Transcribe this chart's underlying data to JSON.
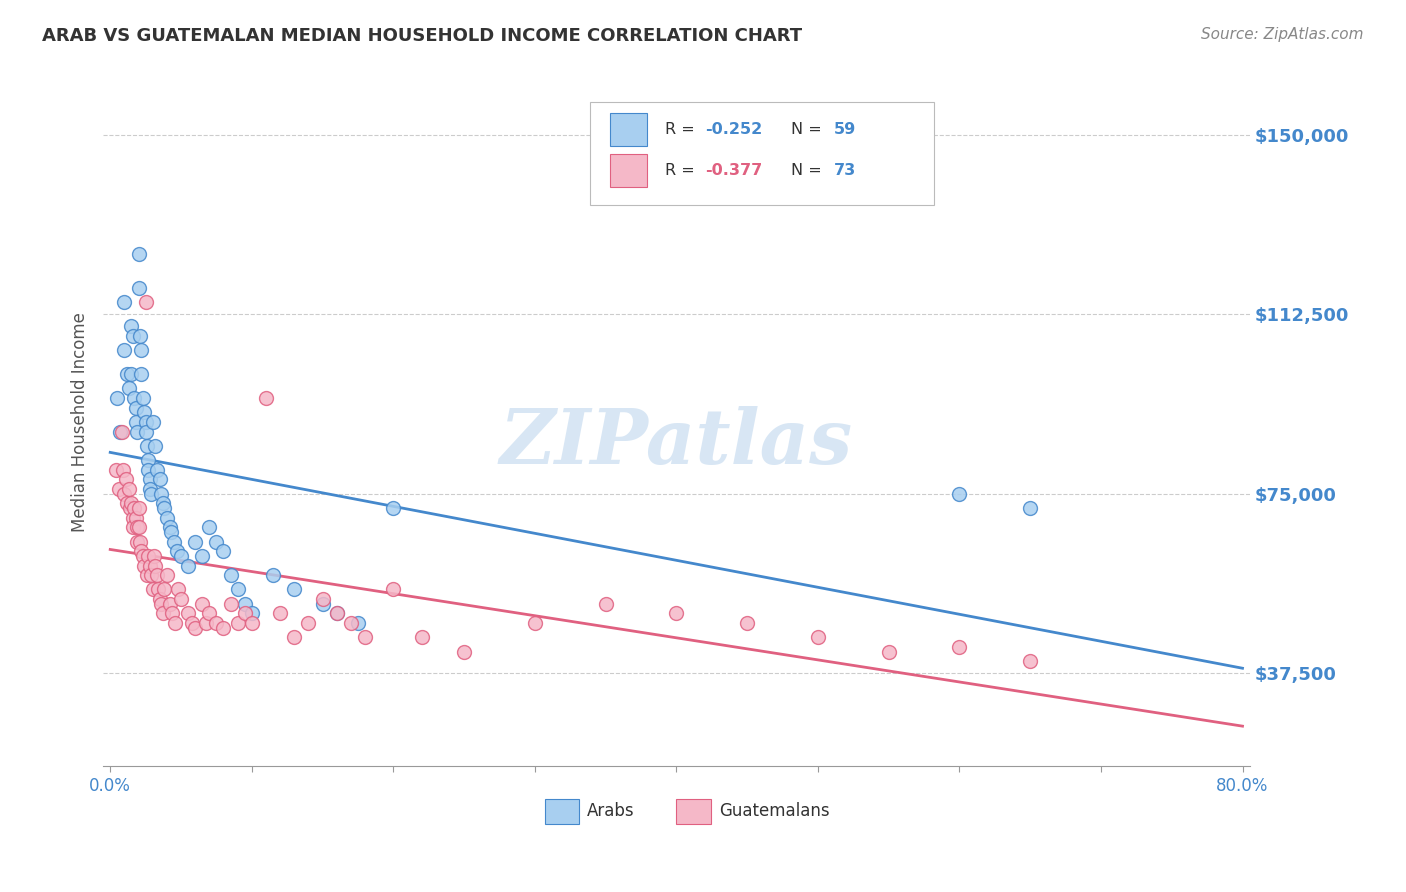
{
  "title": "ARAB VS GUATEMALAN MEDIAN HOUSEHOLD INCOME CORRELATION CHART",
  "source": "Source: ZipAtlas.com",
  "ylabel": "Median Household Income",
  "ytick_labels": [
    "$37,500",
    "$75,000",
    "$112,500",
    "$150,000"
  ],
  "ytick_values": [
    37500,
    75000,
    112500,
    150000
  ],
  "ylim": [
    18000,
    162000
  ],
  "xlim": [
    -0.005,
    0.805
  ],
  "watermark": "ZIPatlas",
  "arab_color": "#A8CFF0",
  "guat_color": "#F5B8C8",
  "arab_line_color": "#4488CC",
  "guat_line_color": "#E06080",
  "background_color": "#FFFFFF",
  "grid_color": "#CCCCCC",
  "arab_x": [
    0.005,
    0.007,
    0.01,
    0.01,
    0.012,
    0.013,
    0.015,
    0.015,
    0.016,
    0.017,
    0.018,
    0.018,
    0.019,
    0.02,
    0.02,
    0.021,
    0.022,
    0.022,
    0.023,
    0.024,
    0.025,
    0.025,
    0.026,
    0.027,
    0.027,
    0.028,
    0.028,
    0.029,
    0.03,
    0.032,
    0.033,
    0.035,
    0.036,
    0.037,
    0.038,
    0.04,
    0.042,
    0.043,
    0.045,
    0.047,
    0.05,
    0.055,
    0.06,
    0.065,
    0.07,
    0.075,
    0.08,
    0.085,
    0.09,
    0.095,
    0.1,
    0.115,
    0.13,
    0.15,
    0.16,
    0.175,
    0.2,
    0.6,
    0.65
  ],
  "arab_y": [
    95000,
    88000,
    115000,
    105000,
    100000,
    97000,
    110000,
    100000,
    108000,
    95000,
    93000,
    90000,
    88000,
    125000,
    118000,
    108000,
    105000,
    100000,
    95000,
    92000,
    90000,
    88000,
    85000,
    82000,
    80000,
    78000,
    76000,
    75000,
    90000,
    85000,
    80000,
    78000,
    75000,
    73000,
    72000,
    70000,
    68000,
    67000,
    65000,
    63000,
    62000,
    60000,
    65000,
    62000,
    68000,
    65000,
    63000,
    58000,
    55000,
    52000,
    50000,
    58000,
    55000,
    52000,
    50000,
    48000,
    72000,
    75000,
    72000
  ],
  "guat_x": [
    0.004,
    0.006,
    0.008,
    0.009,
    0.01,
    0.011,
    0.012,
    0.013,
    0.014,
    0.015,
    0.016,
    0.016,
    0.017,
    0.018,
    0.019,
    0.019,
    0.02,
    0.02,
    0.021,
    0.022,
    0.023,
    0.024,
    0.025,
    0.026,
    0.027,
    0.028,
    0.029,
    0.03,
    0.031,
    0.032,
    0.033,
    0.034,
    0.035,
    0.036,
    0.037,
    0.038,
    0.04,
    0.042,
    0.044,
    0.046,
    0.048,
    0.05,
    0.055,
    0.058,
    0.06,
    0.065,
    0.068,
    0.07,
    0.075,
    0.08,
    0.085,
    0.09,
    0.095,
    0.1,
    0.11,
    0.12,
    0.13,
    0.14,
    0.15,
    0.16,
    0.17,
    0.18,
    0.2,
    0.22,
    0.25,
    0.3,
    0.35,
    0.4,
    0.45,
    0.5,
    0.55,
    0.6,
    0.65
  ],
  "guat_y": [
    80000,
    76000,
    88000,
    80000,
    75000,
    78000,
    73000,
    76000,
    72000,
    73000,
    70000,
    68000,
    72000,
    70000,
    68000,
    65000,
    72000,
    68000,
    65000,
    63000,
    62000,
    60000,
    115000,
    58000,
    62000,
    60000,
    58000,
    55000,
    62000,
    60000,
    58000,
    55000,
    53000,
    52000,
    50000,
    55000,
    58000,
    52000,
    50000,
    48000,
    55000,
    53000,
    50000,
    48000,
    47000,
    52000,
    48000,
    50000,
    48000,
    47000,
    52000,
    48000,
    50000,
    48000,
    95000,
    50000,
    45000,
    48000,
    53000,
    50000,
    48000,
    45000,
    55000,
    45000,
    42000,
    48000,
    52000,
    50000,
    48000,
    45000,
    42000,
    43000,
    40000
  ]
}
